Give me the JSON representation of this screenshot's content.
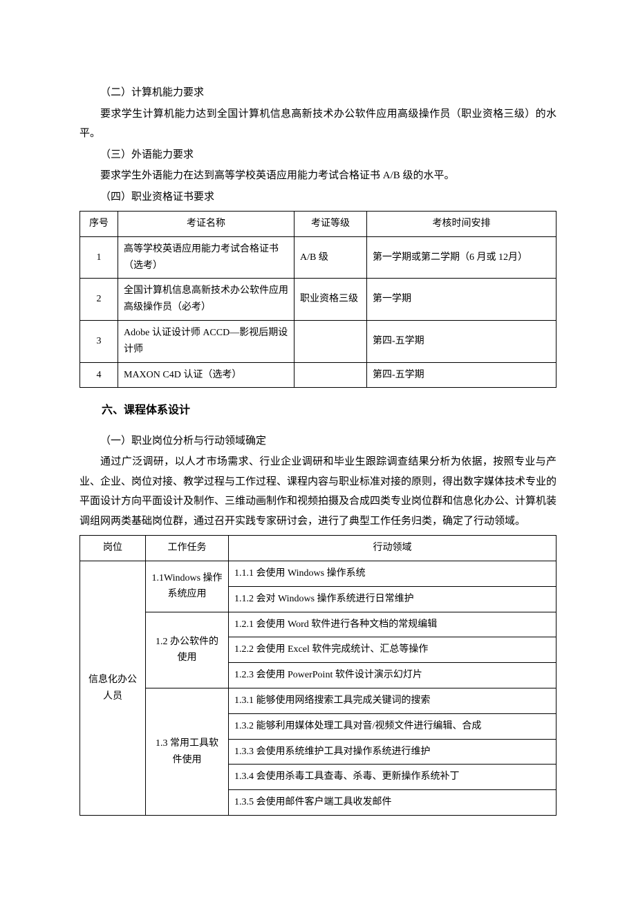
{
  "sections": {
    "s2_title": "（二）计算机能力要求",
    "s2_body": "要求学生计算机能力达到全国计算机信息高新技术办公软件应用高级操作员（职业资格三级）的水平。",
    "s3_title": "（三）外语能力要求",
    "s3_body": "要求学生外语能力在达到高等学校英语应用能力考试合格证书 A/B 级的水平。",
    "s4_title": "（四）职业资格证书要求",
    "s6_heading": "六、课程体系设计",
    "s6_1_title": "（一）职业岗位分析与行动领域确定",
    "s6_1_body": "通过广泛调研，以人才市场需求、行业企业调研和毕业生跟踪调查结果分析为依据，按照专业与产业、企业、岗位对接、教学过程与工作过程、课程内容与职业标准对接的原则，得出数字媒体技术专业的平面设计方向平面设计及制作、三维动画制作和视频拍摄及合成四类专业岗位群和信息化办公、计算机装调组网两类基础岗位群，通过召开实践专家研讨会，进行了典型工作任务归类，确定了行动领域。"
  },
  "table1": {
    "headers": {
      "seq": "序号",
      "name": "考证名称",
      "level": "考证等级",
      "time": "考核时间安排"
    },
    "rows": [
      {
        "seq": "1",
        "name": "高等学校英语应用能力考试合格证书（选考）",
        "level": "A/B 级",
        "time": "第一学期或第二学期（6 月或 12月）"
      },
      {
        "seq": "2",
        "name": "全国计算机信息高新技术办公软件应用高级操作员（必考）",
        "level": "职业资格三级",
        "time": "第一学期"
      },
      {
        "seq": "3",
        "name": "Adobe 认证设计师 ACCD—影视后期设计师",
        "level": "",
        "time": "第四-五学期"
      },
      {
        "seq": "4",
        "name": "MAXON C4D 认证（选考）",
        "level": "",
        "time": "第四-五学期"
      }
    ]
  },
  "table2": {
    "headers": {
      "post": "岗位",
      "task": "工作任务",
      "action": "行动领域"
    },
    "post": "信息化办公人员",
    "tasks": {
      "t1": "1.1Windows 操作系统应用",
      "t2": "1.2 办公软件的使用",
      "t3": "1.3 常用工具软件使用"
    },
    "actions": {
      "a111": "1.1.1 会使用 Windows 操作系统",
      "a112": "1.1.2 会对 Windows 操作系统进行日常维护",
      "a121": "1.2.1 会使用 Word 软件进行各种文档的常规编辑",
      "a122": "1.2.2 会使用 Excel 软件完成统计、汇总等操作",
      "a123": "1.2.3 会使用 PowerPoint 软件设计演示幻灯片",
      "a131": "1.3.1 能够使用网络搜索工具完成关键词的搜索",
      "a132": "1.3.2 能够利用媒体处理工具对音/视频文件进行编辑、合成",
      "a133": "1.3.3 会使用系统维护工具对操作系统进行维护",
      "a134": "1.3.4 会使用杀毒工具查毒、杀毒、更新操作系统补丁",
      "a135": "1.3.5 会使用邮件客户端工具收发邮件"
    }
  }
}
